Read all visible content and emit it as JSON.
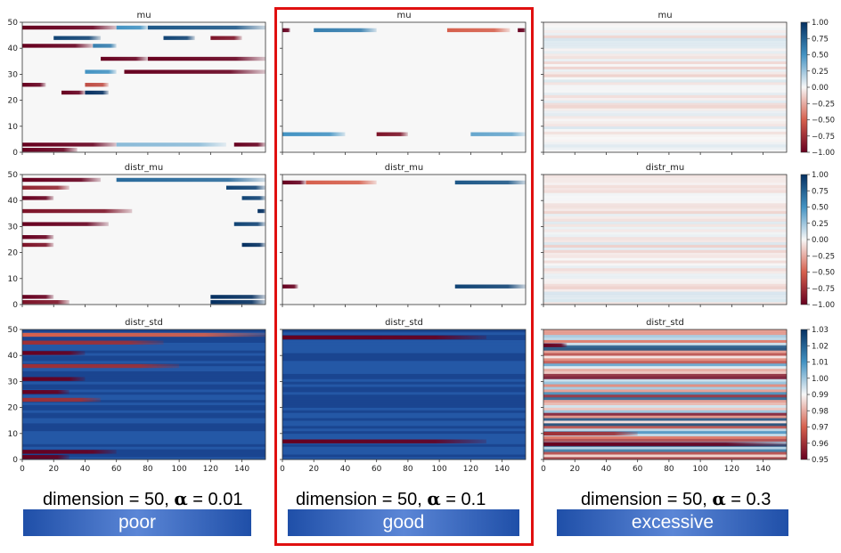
{
  "colors": {
    "neg": "#67001f",
    "neg_mid": "#d6604d",
    "pos_mid": "#4393c3",
    "pos": "#053061",
    "neutral": "#f7f7f7",
    "highlight": "#e01010"
  },
  "columns": [
    {
      "caption_prefix": "dimension = 50, ",
      "alpha_symbol": "α",
      "caption_suffix": " = 0.01",
      "badge": "poor"
    },
    {
      "caption_prefix": "dimension = 50, ",
      "alpha_symbol": "α",
      "caption_suffix": " = 0.1",
      "badge": "good"
    },
    {
      "caption_prefix": "dimension = 50, ",
      "alpha_symbol": "α",
      "caption_suffix": " = 0.3",
      "badge": "excessive"
    }
  ],
  "chart_data": [
    {
      "type": "heatmap",
      "title": "mu",
      "column": 0,
      "row": 0,
      "xlim": [
        0,
        155
      ],
      "ylim": [
        0,
        50
      ],
      "yticks": [
        "0",
        "10",
        "20",
        "30",
        "40",
        "50"
      ],
      "xticks": [],
      "vlim": [
        -1,
        1
      ],
      "stripes": [
        {
          "y": 48,
          "segs": [
            [
              0,
              60,
              -1
            ],
            [
              60,
              80,
              0.5
            ],
            [
              80,
              155,
              0.8
            ]
          ]
        },
        {
          "y": 44,
          "segs": [
            [
              20,
              50,
              0.9
            ],
            [
              90,
              110,
              0.9
            ],
            [
              120,
              140,
              -0.9
            ]
          ]
        },
        {
          "y": 41,
          "segs": [
            [
              0,
              45,
              -1
            ],
            [
              45,
              60,
              0.6
            ]
          ]
        },
        {
          "y": 36,
          "segs": [
            [
              50,
              80,
              -1
            ],
            [
              80,
              155,
              -1
            ]
          ]
        },
        {
          "y": 31,
          "segs": [
            [
              40,
              60,
              0.5
            ],
            [
              65,
              155,
              -1
            ]
          ]
        },
        {
          "y": 26,
          "segs": [
            [
              0,
              15,
              -1
            ],
            [
              40,
              55,
              -0.6
            ]
          ]
        },
        {
          "y": 23,
          "segs": [
            [
              25,
              40,
              -1
            ],
            [
              40,
              55,
              1
            ]
          ]
        },
        {
          "y": 3,
          "segs": [
            [
              0,
              60,
              -1
            ],
            [
              60,
              130,
              0.3
            ],
            [
              135,
              155,
              -1
            ]
          ]
        },
        {
          "y": 1,
          "segs": [
            [
              0,
              35,
              -1
            ]
          ]
        }
      ]
    },
    {
      "type": "heatmap",
      "title": "mu",
      "column": 1,
      "row": 0,
      "xlim": [
        0,
        155
      ],
      "ylim": [
        0,
        50
      ],
      "yticks": [],
      "xticks": [],
      "vlim": [
        -1,
        1
      ],
      "stripes": [
        {
          "y": 47,
          "segs": [
            [
              0,
              5,
              -1
            ],
            [
              20,
              60,
              0.6
            ],
            [
              105,
              145,
              -0.5
            ],
            [
              150,
              155,
              -1
            ]
          ]
        },
        {
          "y": 7,
          "segs": [
            [
              0,
              40,
              0.5
            ],
            [
              60,
              80,
              -0.9
            ],
            [
              120,
              155,
              0.4
            ]
          ]
        }
      ]
    },
    {
      "type": "heatmap",
      "title": "mu",
      "column": 2,
      "row": 0,
      "xlim": [
        0,
        155
      ],
      "ylim": [
        0,
        50
      ],
      "yticks": [],
      "xticks": [],
      "vlim": [
        -1,
        1
      ],
      "faint": true,
      "colorbar_ticks": [
        "1.00",
        "0.75",
        "0.50",
        "0.25",
        "0.00",
        "−0.25",
        "−0.50",
        "−0.75",
        "−1.00"
      ]
    },
    {
      "type": "heatmap",
      "title": "distr_mu",
      "column": 0,
      "row": 1,
      "xlim": [
        0,
        155
      ],
      "ylim": [
        0,
        50
      ],
      "yticks": [
        "0",
        "10",
        "20",
        "30",
        "40",
        "50"
      ],
      "xticks": [],
      "vlim": [
        -1,
        1
      ],
      "stripes": [
        {
          "y": 48,
          "segs": [
            [
              0,
              50,
              -1
            ],
            [
              60,
              155,
              0.7
            ]
          ]
        },
        {
          "y": 45,
          "segs": [
            [
              0,
              30,
              -0.8
            ],
            [
              130,
              155,
              0.9
            ]
          ]
        },
        {
          "y": 41,
          "segs": [
            [
              0,
              20,
              -1
            ],
            [
              140,
              155,
              0.9
            ]
          ]
        },
        {
          "y": 36,
          "segs": [
            [
              0,
              70,
              -0.9
            ],
            [
              150,
              155,
              1
            ]
          ]
        },
        {
          "y": 31,
          "segs": [
            [
              0,
              55,
              -1
            ],
            [
              135,
              155,
              0.9
            ]
          ]
        },
        {
          "y": 26,
          "segs": [
            [
              0,
              20,
              -1
            ]
          ]
        },
        {
          "y": 23,
          "segs": [
            [
              0,
              20,
              -0.9
            ],
            [
              140,
              155,
              1
            ]
          ]
        },
        {
          "y": 3,
          "segs": [
            [
              0,
              20,
              -1
            ],
            [
              120,
              155,
              1
            ]
          ]
        },
        {
          "y": 1,
          "segs": [
            [
              0,
              30,
              -0.9
            ],
            [
              120,
              155,
              1
            ]
          ]
        }
      ]
    },
    {
      "type": "heatmap",
      "title": "distr_mu",
      "column": 1,
      "row": 1,
      "xlim": [
        0,
        155
      ],
      "ylim": [
        0,
        50
      ],
      "yticks": [],
      "xticks": [],
      "vlim": [
        -1,
        1
      ],
      "stripes": [
        {
          "y": 47,
          "segs": [
            [
              0,
              15,
              -1
            ],
            [
              15,
              60,
              -0.5
            ],
            [
              110,
              155,
              0.8
            ]
          ]
        },
        {
          "y": 7,
          "segs": [
            [
              0,
              10,
              -1
            ],
            [
              110,
              155,
              0.9
            ]
          ]
        }
      ]
    },
    {
      "type": "heatmap",
      "title": "distr_mu",
      "column": 2,
      "row": 1,
      "xlim": [
        0,
        155
      ],
      "ylim": [
        0,
        50
      ],
      "yticks": [],
      "xticks": [],
      "vlim": [
        -1,
        1
      ],
      "faint": true,
      "colorbar_ticks": [
        "1.00",
        "0.75",
        "0.50",
        "0.25",
        "0.00",
        "−0.25",
        "−0.50",
        "−0.75",
        "−1.00"
      ]
    },
    {
      "type": "heatmap",
      "title": "distr_std",
      "column": 0,
      "row": 2,
      "xlim": [
        0,
        155
      ],
      "ylim": [
        0,
        50
      ],
      "yticks": [
        "0",
        "10",
        "20",
        "30",
        "40",
        "50"
      ],
      "xticks": [
        "0",
        "20",
        "40",
        "60",
        "80",
        "100",
        "120",
        "140"
      ],
      "vlim": [
        0.95,
        1.03
      ],
      "dark_background": true,
      "stripes": [
        {
          "y": 48,
          "segs": [
            [
              0,
              155,
              0.97
            ]
          ]
        },
        {
          "y": 45,
          "segs": [
            [
              0,
              90,
              0.96
            ]
          ]
        },
        {
          "y": 41,
          "segs": [
            [
              0,
              40,
              0.95
            ]
          ]
        },
        {
          "y": 36,
          "segs": [
            [
              0,
              100,
              0.96
            ]
          ]
        },
        {
          "y": 31,
          "segs": [
            [
              0,
              40,
              0.95
            ]
          ]
        },
        {
          "y": 26,
          "segs": [
            [
              0,
              30,
              0.95
            ]
          ]
        },
        {
          "y": 23,
          "segs": [
            [
              0,
              50,
              0.96
            ]
          ]
        },
        {
          "y": 3,
          "segs": [
            [
              0,
              60,
              0.95
            ]
          ]
        },
        {
          "y": 1,
          "segs": [
            [
              0,
              30,
              0.95
            ]
          ]
        }
      ]
    },
    {
      "type": "heatmap",
      "title": "distr_std",
      "column": 1,
      "row": 2,
      "xlim": [
        0,
        155
      ],
      "ylim": [
        0,
        50
      ],
      "yticks": [],
      "xticks": [
        "0",
        "20",
        "40",
        "60",
        "80",
        "100",
        "120",
        "140"
      ],
      "vlim": [
        0.95,
        1.03
      ],
      "dark_background": true,
      "stripes": [
        {
          "y": 47,
          "segs": [
            [
              0,
              130,
              0.95
            ]
          ]
        },
        {
          "y": 7,
          "segs": [
            [
              0,
              130,
              0.95
            ]
          ]
        }
      ]
    },
    {
      "type": "heatmap",
      "title": "distr_std",
      "column": 2,
      "row": 2,
      "xlim": [
        0,
        155
      ],
      "ylim": [
        0,
        50
      ],
      "yticks": [],
      "xticks": [
        "0",
        "20",
        "40",
        "60",
        "80",
        "100",
        "120",
        "140"
      ],
      "vlim": [
        0.95,
        1.03
      ],
      "banded": true,
      "stripes": [
        {
          "y": 44,
          "segs": [
            [
              0,
              15,
              0.95
            ]
          ]
        },
        {
          "y": 6,
          "segs": [
            [
              0,
              155,
              0.95
            ]
          ]
        },
        {
          "y": 10,
          "segs": [
            [
              0,
              60,
              0.96
            ]
          ]
        }
      ],
      "colorbar_ticks": [
        "1.03",
        "1.02",
        "1.01",
        "1.00",
        "0.99",
        "0.98",
        "0.97",
        "0.96",
        "0.95"
      ]
    }
  ]
}
